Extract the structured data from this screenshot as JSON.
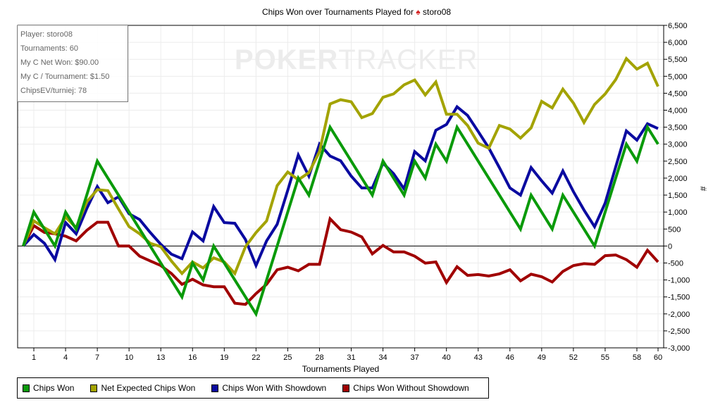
{
  "chart_data": {
    "type": "line",
    "title": "Chips Won over Tournaments Played for",
    "player": "storo08",
    "xlabel": "Tournaments Played",
    "ylabel": "#",
    "xlim": [
      0,
      60
    ],
    "ylim": [
      -3000,
      6500
    ],
    "grid": true,
    "legend_position": "bottom",
    "x_ticks": [
      1,
      4,
      7,
      10,
      13,
      16,
      19,
      22,
      25,
      28,
      31,
      34,
      37,
      40,
      43,
      46,
      49,
      52,
      55,
      58,
      60
    ],
    "y_ticks": [
      -3000,
      -2500,
      -2000,
      -1500,
      -1000,
      -500,
      0,
      500,
      1000,
      1500,
      2000,
      2500,
      3000,
      3500,
      4000,
      4500,
      5000,
      5500,
      6000,
      6500
    ],
    "y_tick_labels": [
      "-3,000",
      "-2,500",
      "-2,000",
      "-1,500",
      "-1,000",
      "-500",
      "0",
      "500",
      "1,000",
      "1,500",
      "2,000",
      "2,500",
      "3,000",
      "3,500",
      "4,000",
      "4,500",
      "5,000",
      "5,500",
      "6,000",
      "6,500"
    ],
    "series": [
      {
        "name": "Chips Won",
        "color": "#0a9a0a",
        "values": [
          0,
          1000,
          500,
          0,
          1000,
          500,
          1500,
          2500,
          2000,
          1500,
          1000,
          500,
          0,
          -500,
          -1000,
          -1500,
          -500,
          -1000,
          0,
          -500,
          -1000,
          -1500,
          -2000,
          -1000,
          0,
          1000,
          2000,
          1500,
          2500,
          3500,
          3000,
          2500,
          2000,
          1500,
          2500,
          2000,
          1500,
          2500,
          2000,
          3000,
          2500,
          3500,
          3000,
          2500,
          2000,
          1500,
          1000,
          500,
          1500,
          1000,
          500,
          1500,
          1000,
          500,
          0,
          1000,
          2000,
          3000,
          2500,
          3500,
          3000
        ]
      },
      {
        "name": "Net Expected Chips Won",
        "color": "#a3a300",
        "values": [
          0,
          740,
          540,
          360,
          850,
          540,
          1300,
          1660,
          1630,
          1090,
          570,
          360,
          80,
          -20,
          -440,
          -810,
          -470,
          -645,
          -350,
          -470,
          -810,
          -20,
          395,
          740,
          1780,
          2180,
          1950,
          2160,
          2780,
          4185,
          4310,
          4250,
          3780,
          3900,
          4380,
          4480,
          4750,
          4890,
          4450,
          4830,
          3880,
          3880,
          3550,
          3030,
          2880,
          3550,
          3445,
          3180,
          3480,
          4260,
          4070,
          4620,
          4210,
          3640,
          4170,
          4480,
          4900,
          5520,
          5210,
          5385,
          4700
        ]
      },
      {
        "name": "Chips Won With Showdown",
        "color": "#0a0aa0",
        "values": [
          0,
          340,
          80,
          -400,
          690,
          360,
          1100,
          1750,
          1275,
          1450,
          950,
          780,
          400,
          50,
          -240,
          -375,
          415,
          150,
          1160,
          690,
          670,
          190,
          -575,
          150,
          640,
          1640,
          2680,
          2060,
          3000,
          2650,
          2510,
          2060,
          1710,
          1710,
          2440,
          2130,
          1680,
          2780,
          2510,
          3410,
          3580,
          4100,
          3845,
          3375,
          2890,
          2310,
          1710,
          1500,
          2310,
          1920,
          1560,
          2210,
          1600,
          1060,
          570,
          1265,
          2330,
          3390,
          3120,
          3600,
          3460
        ]
      },
      {
        "name": "Chips Won Without Showdown",
        "color": "#a00000",
        "values": [
          0,
          600,
          400,
          360,
          290,
          150,
          460,
          700,
          700,
          0,
          0,
          -300,
          -440,
          -575,
          -810,
          -1130,
          -980,
          -1145,
          -1200,
          -1200,
          -1685,
          -1720,
          -1400,
          -1130,
          -700,
          -625,
          -730,
          -540,
          -540,
          800,
          480,
          410,
          270,
          -230,
          15,
          -175,
          -175,
          -300,
          -505,
          -470,
          -1075,
          -610,
          -865,
          -840,
          -885,
          -820,
          -700,
          -1025,
          -830,
          -905,
          -1060,
          -750,
          -575,
          -520,
          -540,
          -285,
          -265,
          -400,
          -625,
          -125,
          -470
        ]
      }
    ]
  },
  "stats": {
    "player": "Player: storo08",
    "tournaments": "Tournaments: 60",
    "net_won": "My C Net Won: $90.00",
    "per_tournament": "My C / Tournament: $1.50",
    "chips_ev": "ChipsEV/turniej: 78"
  },
  "watermark": {
    "part1": "POKER",
    "part2": "TRACKER"
  },
  "icons": {
    "title_icon": "spade-icon"
  }
}
